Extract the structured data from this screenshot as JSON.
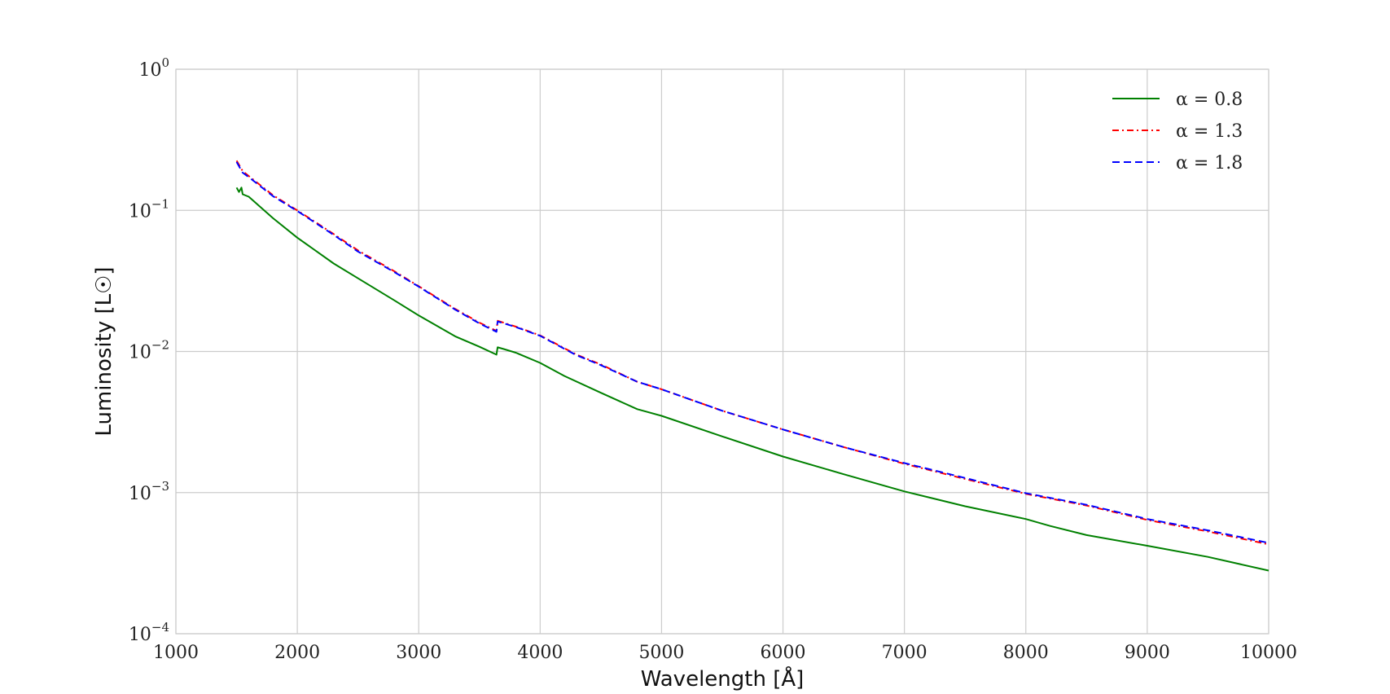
{
  "chart_data": {
    "type": "line",
    "title": "",
    "xlabel": "Wavelength [Å]",
    "ylabel": "Luminosity [L☉]",
    "xlim": [
      1000,
      10000
    ],
    "ylim": [
      0.0001,
      1
    ],
    "yscale": "log",
    "grid": true,
    "legend_position": "top-right",
    "x_ticks": [
      1000,
      2000,
      3000,
      4000,
      5000,
      6000,
      7000,
      8000,
      9000,
      10000
    ],
    "x_tick_labels": [
      "1000",
      "2000",
      "3000",
      "4000",
      "5000",
      "6000",
      "7000",
      "8000",
      "9000",
      "10000"
    ],
    "y_ticks": [
      0.0001,
      0.001,
      0.01,
      0.1,
      1
    ],
    "y_tick_labels": [
      {
        "base": "10",
        "exp": "−4"
      },
      {
        "base": "10",
        "exp": "−3"
      },
      {
        "base": "10",
        "exp": "−2"
      },
      {
        "base": "10",
        "exp": "−1"
      },
      {
        "base": "10",
        "exp": "0"
      }
    ],
    "series": [
      {
        "name": "α = 0.8",
        "color": "#008000",
        "style": "solid",
        "points": [
          [
            1500,
            0.145
          ],
          [
            1520,
            0.135
          ],
          [
            1540,
            0.145
          ],
          [
            1550,
            0.13
          ],
          [
            1600,
            0.125
          ],
          [
            1800,
            0.088
          ],
          [
            2000,
            0.064
          ],
          [
            2300,
            0.042
          ],
          [
            2500,
            0.033
          ],
          [
            2800,
            0.023
          ],
          [
            3000,
            0.018
          ],
          [
            3300,
            0.0128
          ],
          [
            3500,
            0.0108
          ],
          [
            3640,
            0.0095
          ],
          [
            3650,
            0.0107
          ],
          [
            3700,
            0.0104
          ],
          [
            3800,
            0.0098
          ],
          [
            4000,
            0.0083
          ],
          [
            4200,
            0.0067
          ],
          [
            4500,
            0.0051
          ],
          [
            4800,
            0.0039
          ],
          [
            5000,
            0.0035
          ],
          [
            5500,
            0.0025
          ],
          [
            6000,
            0.0018
          ],
          [
            6500,
            0.00135
          ],
          [
            7000,
            0.00102
          ],
          [
            7500,
            0.0008
          ],
          [
            8000,
            0.00065
          ],
          [
            8200,
            0.00058
          ],
          [
            8500,
            0.0005
          ],
          [
            9000,
            0.00042
          ],
          [
            9500,
            0.00035
          ],
          [
            10000,
            0.00028
          ]
        ]
      },
      {
        "name": "α = 1.3",
        "color": "#ff0000",
        "style": "dashdot",
        "points": [
          [
            1500,
            0.225
          ],
          [
            1550,
            0.19
          ],
          [
            1600,
            0.175
          ],
          [
            1800,
            0.128
          ],
          [
            2000,
            0.1
          ],
          [
            2300,
            0.068
          ],
          [
            2500,
            0.052
          ],
          [
            2800,
            0.037
          ],
          [
            3000,
            0.029
          ],
          [
            3300,
            0.02
          ],
          [
            3500,
            0.016
          ],
          [
            3640,
            0.014
          ],
          [
            3650,
            0.0165
          ],
          [
            3800,
            0.015
          ],
          [
            4000,
            0.013
          ],
          [
            4300,
            0.0095
          ],
          [
            4500,
            0.0081
          ],
          [
            4800,
            0.0061
          ],
          [
            5000,
            0.0054
          ],
          [
            5500,
            0.0038
          ],
          [
            6000,
            0.0028
          ],
          [
            6500,
            0.0021
          ],
          [
            7000,
            0.0016
          ],
          [
            7500,
            0.00125
          ],
          [
            8000,
            0.00098
          ],
          [
            8500,
            0.00081
          ],
          [
            9000,
            0.00064
          ],
          [
            9500,
            0.00053
          ],
          [
            10000,
            0.00043
          ]
        ]
      },
      {
        "name": "α = 1.8",
        "color": "#0000ff",
        "style": "dashed",
        "points": [
          [
            1500,
            0.22
          ],
          [
            1550,
            0.185
          ],
          [
            1600,
            0.172
          ],
          [
            1800,
            0.126
          ],
          [
            2000,
            0.099
          ],
          [
            2300,
            0.067
          ],
          [
            2500,
            0.051
          ],
          [
            2800,
            0.0365
          ],
          [
            3000,
            0.0288
          ],
          [
            3300,
            0.0198
          ],
          [
            3500,
            0.0158
          ],
          [
            3640,
            0.0138
          ],
          [
            3650,
            0.0163
          ],
          [
            3800,
            0.0149
          ],
          [
            4000,
            0.0129
          ],
          [
            4300,
            0.0094
          ],
          [
            4500,
            0.008
          ],
          [
            4800,
            0.0061
          ],
          [
            5000,
            0.0054
          ],
          [
            5500,
            0.0038
          ],
          [
            6000,
            0.0028
          ],
          [
            6500,
            0.0021
          ],
          [
            7000,
            0.00162
          ],
          [
            7500,
            0.00127
          ],
          [
            8000,
            0.00099
          ],
          [
            8500,
            0.00082
          ],
          [
            9000,
            0.00065
          ],
          [
            9500,
            0.00054
          ],
          [
            10000,
            0.00044
          ]
        ]
      }
    ]
  }
}
